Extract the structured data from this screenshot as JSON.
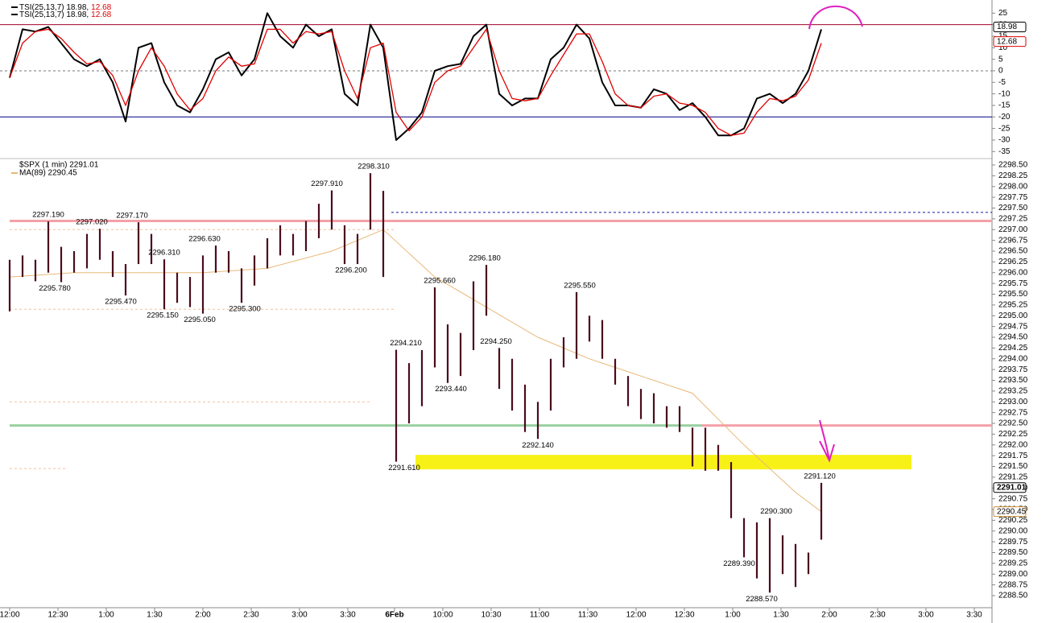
{
  "chart_data": [
    {
      "type": "line",
      "legend": [
        [
          "TSI(25,13,7) 18.98,",
          "12.68"
        ],
        [
          "TSI(25,13,7) 18.98,",
          "12.68"
        ]
      ],
      "x": [
        0,
        8,
        16,
        24,
        32,
        40,
        48,
        56,
        64,
        72,
        80,
        88,
        96,
        104,
        112,
        120,
        128,
        136,
        144,
        152,
        160,
        168,
        176,
        184,
        192,
        200,
        208,
        216,
        224,
        232,
        240,
        248,
        256,
        264,
        272,
        280,
        288,
        296,
        304,
        312,
        320,
        328,
        336,
        344,
        352,
        360,
        368,
        376,
        384,
        392,
        400,
        408,
        416,
        424,
        432,
        440,
        448,
        456,
        464,
        472,
        480,
        488,
        496,
        504
      ],
      "series": [
        {
          "color": "#000000",
          "values": [
            -3,
            18,
            17,
            19,
            12,
            5,
            2,
            5,
            -5,
            -22,
            10,
            12,
            -5,
            -15,
            -18,
            -8,
            5,
            8,
            -2,
            5,
            25,
            15,
            10,
            20,
            15,
            18,
            -10,
            -15,
            20,
            10,
            -30,
            -25,
            -18,
            0,
            2,
            3,
            15,
            20,
            -10,
            -15,
            -12,
            -12,
            5,
            10,
            20,
            14,
            -5,
            -15,
            -15,
            -16,
            -8,
            -10,
            -17,
            -14,
            -20,
            -28,
            -28,
            -25,
            -12,
            -10,
            -14,
            -10,
            0,
            18
          ]
        },
        {
          "color": "#e00000",
          "values": [
            -3,
            12,
            17,
            18,
            14,
            8,
            3,
            4,
            -2,
            -15,
            0,
            10,
            2,
            -10,
            -17,
            -12,
            0,
            6,
            2,
            3,
            18,
            18,
            12,
            17,
            16,
            17,
            0,
            -12,
            10,
            12,
            -18,
            -26,
            -20,
            -5,
            0,
            2,
            10,
            18,
            0,
            -12,
            -13,
            -12,
            -2,
            7,
            16,
            16,
            4,
            -10,
            -15,
            -16,
            -11,
            -10,
            -14,
            -15,
            -18,
            -25,
            -28,
            -27,
            -18,
            -12,
            -13,
            -11,
            -4,
            12
          ]
        }
      ],
      "tags": [
        {
          "value": 18.98,
          "color": "#000000"
        },
        {
          "value": 12.68,
          "color": "#e00000"
        }
      ],
      "levels": [
        {
          "value": 20,
          "color": "#a0002a",
          "style": "solid"
        },
        {
          "value": -20,
          "color": "#000080",
          "style": "solid"
        },
        {
          "value": 0,
          "color": "#777777",
          "style": "dashed"
        }
      ],
      "xlim": [
        0,
        613
      ],
      "ylim": [
        -35,
        25
      ],
      "yticks": [
        25,
        20,
        15,
        10,
        5,
        0,
        -5,
        -10,
        -15,
        -20,
        -25,
        -30,
        -35
      ]
    },
    {
      "type": "ohlc",
      "legend": [
        "$SPX (1 min) 2291.01",
        "MA(89) 2290.45"
      ],
      "x": [
        0,
        8,
        16,
        24,
        32,
        40,
        48,
        56,
        64,
        72,
        80,
        88,
        96,
        104,
        112,
        120,
        128,
        136,
        144,
        152,
        160,
        168,
        176,
        184,
        192,
        200,
        208,
        216,
        224,
        232,
        240,
        248,
        256,
        264,
        272,
        280,
        288,
        296,
        304,
        312,
        320,
        328,
        336,
        344,
        352,
        360,
        368,
        376,
        384,
        392,
        400,
        408,
        416,
        424,
        432,
        440,
        448,
        456,
        464,
        472,
        480,
        488,
        496,
        504
      ],
      "high": [
        2296.3,
        2296.4,
        2296.3,
        2297.19,
        2296.6,
        2296.5,
        2296.9,
        2297.02,
        2296.5,
        2296.2,
        2297.17,
        2296.9,
        2296.31,
        2296.0,
        2295.9,
        2296.4,
        2296.63,
        2296.5,
        2296.1,
        2296.4,
        2296.8,
        2297.1,
        2296.9,
        2297.2,
        2297.6,
        2297.91,
        2297.1,
        2296.9,
        2298.31,
        2297.9,
        2294.21,
        2293.9,
        2294.2,
        2295.66,
        2294.8,
        2294.6,
        2295.8,
        2296.18,
        2294.25,
        2294.0,
        2293.4,
        2293.0,
        2294.0,
        2294.5,
        2295.55,
        2295.0,
        2294.9,
        2294.0,
        2293.6,
        2293.3,
        2293.2,
        2292.9,
        2292.9,
        2292.4,
        2292.4,
        2292.0,
        2291.6,
        2290.3,
        2290.2,
        2290.3,
        2289.9,
        2289.7,
        2289.5,
        2291.12
      ],
      "low": [
        2295.1,
        2295.9,
        2295.8,
        2296.0,
        2295.78,
        2296.0,
        2296.1,
        2296.3,
        2295.9,
        2295.47,
        2296.2,
        2296.2,
        2295.15,
        2295.3,
        2295.2,
        2295.05,
        2296.0,
        2296.0,
        2295.3,
        2295.7,
        2296.1,
        2296.4,
        2296.4,
        2296.5,
        2296.8,
        2297.0,
        2296.2,
        2296.2,
        2297.0,
        2295.9,
        2291.61,
        2292.5,
        2292.9,
        2293.8,
        2293.44,
        2293.6,
        2294.2,
        2295.0,
        2293.3,
        2292.8,
        2292.3,
        2292.14,
        2292.8,
        2293.8,
        2294.0,
        2294.4,
        2294.0,
        2293.4,
        2292.9,
        2292.6,
        2292.5,
        2292.4,
        2292.3,
        2291.5,
        2291.4,
        2291.4,
        2290.3,
        2289.39,
        2288.9,
        2288.57,
        2289.0,
        2288.7,
        2289.0,
        2289.8
      ],
      "color": "#4a0c1c",
      "ma": {
        "color": "#e8b878",
        "x": [
          0,
          40,
          80,
          120,
          160,
          200,
          232,
          264,
          296,
          328,
          360,
          392,
          424,
          456,
          488,
          504
        ],
        "values": [
          2295.9,
          2296.0,
          2296.0,
          2296.0,
          2296.1,
          2296.5,
          2297.0,
          2295.9,
          2295.2,
          2294.5,
          2294.0,
          2293.6,
          2293.2,
          2292.0,
          2290.9,
          2290.45
        ]
      },
      "tags": [
        {
          "value": 2291.01,
          "color": "#000000"
        },
        {
          "value": 2290.45,
          "color": "#d09030"
        }
      ],
      "levels": [
        {
          "value": 2297.2,
          "color": "#f4a0a8",
          "style": "solid",
          "from": 0,
          "to": 613
        },
        {
          "value": 2292.45,
          "color": "#98d0a0",
          "style": "solid",
          "from": 0,
          "to": 430
        },
        {
          "value": 2292.45,
          "color": "#f4a0a8",
          "style": "solid",
          "from": 430,
          "to": 613
        },
        {
          "value": 2297.4,
          "color": "#1a1aa0",
          "style": "dashed",
          "from": 237,
          "to": 613
        },
        {
          "value": 2297.0,
          "color": "#f0c0a0",
          "style": "dashed",
          "from": 0,
          "to": 240
        },
        {
          "value": 2295.15,
          "color": "#f0c0a0",
          "style": "dashed",
          "from": 0,
          "to": 240
        },
        {
          "value": 2293.0,
          "color": "#f0c0a0",
          "style": "dashed",
          "from": 0,
          "to": 225
        },
        {
          "value": 2291.45,
          "color": "#f0c0a0",
          "style": "dashed",
          "from": 0,
          "to": 35
        },
        {
          "value": 2291.6,
          "color": "#f8f000",
          "style": "highlight",
          "from": 252,
          "to": 560
        }
      ],
      "annotations": [
        {
          "x": 24,
          "value": 2297.19,
          "label": "2297.190"
        },
        {
          "x": 28,
          "value": 2295.78,
          "label": "2295.780"
        },
        {
          "x": 51,
          "value": 2297.02,
          "label": "2297.020"
        },
        {
          "x": 69,
          "value": 2295.47,
          "label": "2295.470"
        },
        {
          "x": 76,
          "value": 2297.17,
          "label": "2297.170"
        },
        {
          "x": 96,
          "value": 2296.31,
          "label": "2296.310"
        },
        {
          "x": 95,
          "value": 2295.15,
          "label": "2295.150"
        },
        {
          "x": 121,
          "value": 2296.63,
          "label": "2296.630"
        },
        {
          "x": 118,
          "value": 2295.05,
          "label": "2295.050"
        },
        {
          "x": 146,
          "value": 2295.3,
          "label": "2295.300"
        },
        {
          "x": 197,
          "value": 2297.91,
          "label": "2297.910"
        },
        {
          "x": 212,
          "value": 2296.2,
          "label": "2296.200"
        },
        {
          "x": 226,
          "value": 2298.31,
          "label": "2298.310"
        },
        {
          "x": 246,
          "value": 2294.21,
          "label": "2294.210"
        },
        {
          "x": 245,
          "value": 2291.61,
          "label": "2291.610"
        },
        {
          "x": 267,
          "value": 2295.66,
          "label": "2295.660"
        },
        {
          "x": 274,
          "value": 2293.44,
          "label": "2293.440"
        },
        {
          "x": 295,
          "value": 2296.18,
          "label": "2296.180"
        },
        {
          "x": 302,
          "value": 2294.25,
          "label": "2294.250"
        },
        {
          "x": 328,
          "value": 2292.14,
          "label": "2292.140"
        },
        {
          "x": 354,
          "value": 2295.55,
          "label": "2295.550"
        },
        {
          "x": 453,
          "value": 2289.39,
          "label": "2289.390"
        },
        {
          "x": 476,
          "value": 2290.3,
          "label": "2290.300"
        },
        {
          "x": 467,
          "value": 2288.57,
          "label": "2288.570"
        },
        {
          "x": 503,
          "value": 2291.12,
          "label": "2291.120"
        }
      ],
      "xlim": [
        0,
        613
      ],
      "ylim": [
        2288.5,
        2298.5
      ],
      "yticks": [
        {
          "value": 2298.5,
          "label": "2298.50"
        },
        2298.25,
        {
          "value": 2298,
          "label": "2298.00"
        },
        2297.75,
        {
          "value": 2297.5,
          "label": "2297.50"
        },
        2297.25,
        {
          "value": 2297,
          "label": "2297.00"
        },
        2296.75,
        {
          "value": 2296.5,
          "label": "2296.50"
        },
        2296.25,
        {
          "value": 2296,
          "label": "2296.00"
        },
        2295.75,
        {
          "value": 2295.5,
          "label": "2295.50"
        },
        2295.25,
        {
          "value": 2295,
          "label": "2295.00"
        },
        2294.75,
        {
          "value": 2294.5,
          "label": "2294.50"
        },
        2294.25,
        {
          "value": 2294,
          "label": "2294.00"
        },
        2293.75,
        {
          "value": 2293.5,
          "label": "2293.50"
        },
        2293.25,
        {
          "value": 2293,
          "label": "2293.00"
        },
        2292.75,
        {
          "value": 2292.5,
          "label": "2292.50"
        },
        2292.25,
        {
          "value": 2292,
          "label": "2292.00"
        },
        2291.75,
        {
          "value": 2291.5,
          "label": "2291.50"
        },
        2291.25,
        {
          "value": 2291,
          "label": "2291.00"
        },
        2290.75,
        {
          "value": 2290.5,
          "label": "2290.50"
        },
        2290.25,
        {
          "value": 2290,
          "label": "2290.00"
        },
        2289.75,
        {
          "value": 2289.5,
          "label": "2289.50"
        },
        2289.25,
        {
          "value": 2289,
          "label": "2289.00"
        },
        2288.75,
        {
          "value": 2288.5,
          "label": "2288.50"
        }
      ],
      "xticks": [
        {
          "value": 0,
          "label": "12:00"
        },
        {
          "value": 30,
          "label": "12:30"
        },
        {
          "value": 60,
          "label": "1:00"
        },
        {
          "value": 90,
          "label": "1:30"
        },
        {
          "value": 120,
          "label": "2:00"
        },
        {
          "value": 150,
          "label": "2:30"
        },
        {
          "value": 180,
          "label": "3:00"
        },
        {
          "value": 210,
          "label": "3:30"
        },
        {
          "value": 239,
          "label": "6Feb"
        },
        {
          "value": 269,
          "label": "10:00"
        },
        {
          "value": 299,
          "label": "10:30"
        },
        {
          "value": 329,
          "label": "11:00"
        },
        {
          "value": 359,
          "label": "11:30"
        },
        {
          "value": 389,
          "label": "12:00"
        },
        {
          "value": 419,
          "label": "12:30"
        },
        {
          "value": 449,
          "label": "1:00"
        },
        {
          "value": 479,
          "label": "1:30"
        },
        {
          "value": 509,
          "label": "2:00"
        },
        {
          "value": 539,
          "label": "2:30"
        },
        {
          "value": 569,
          "label": "3:00"
        },
        {
          "value": 599,
          "label": "3:30"
        }
      ]
    }
  ]
}
